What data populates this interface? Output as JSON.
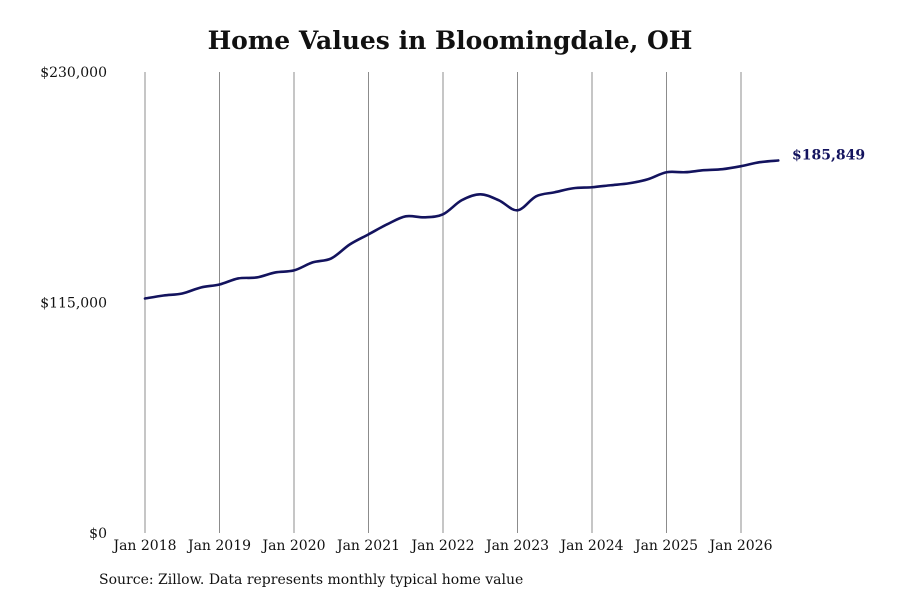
{
  "chart_data": {
    "type": "line",
    "title": "Home Values in Bloomingdale, OH",
    "xlabel": "",
    "ylabel": "",
    "source_note": "Source: Zillow. Data represents monthly typical home value",
    "x_ticks": [
      "Jan 2018",
      "Jan 2019",
      "Jan 2020",
      "Jan 2021",
      "Jan 2022",
      "Jan 2023",
      "Jan 2024",
      "Jan 2025",
      "Jan 2026"
    ],
    "y_ticks": [
      {
        "value": 0,
        "label": "$0"
      },
      {
        "value": 115000,
        "label": "$115,000"
      },
      {
        "value": 230000,
        "label": "$230,000"
      }
    ],
    "ylim": [
      0,
      230000
    ],
    "xlim": [
      "2018-01",
      "2026-07"
    ],
    "grid": {
      "vertical": true,
      "horizontal": false
    },
    "line_color": "#13135e",
    "end_label": "$185,849",
    "series": [
      {
        "x": [
          "2018-01",
          "2018-04",
          "2018-07",
          "2018-10",
          "2019-01",
          "2019-04",
          "2019-07",
          "2019-10",
          "2020-01",
          "2020-04",
          "2020-07",
          "2020-10",
          "2021-01",
          "2021-04",
          "2021-07",
          "2021-10",
          "2022-01",
          "2022-04",
          "2022-07",
          "2022-10",
          "2023-01",
          "2023-04",
          "2023-07",
          "2023-10",
          "2024-01",
          "2024-04",
          "2024-07",
          "2024-10",
          "2025-01",
          "2025-04",
          "2025-07",
          "2025-10",
          "2026-01",
          "2026-04",
          "2026-07"
        ],
        "values": [
          117000,
          118500,
          119500,
          122500,
          124000,
          127000,
          127500,
          130000,
          131000,
          135000,
          137000,
          144000,
          149000,
          154000,
          158000,
          157500,
          159000,
          166000,
          169000,
          166000,
          161000,
          168000,
          170000,
          172000,
          172500,
          173500,
          174500,
          176500,
          180000,
          180000,
          181000,
          181500,
          183000,
          185000,
          185849
        ]
      }
    ]
  }
}
